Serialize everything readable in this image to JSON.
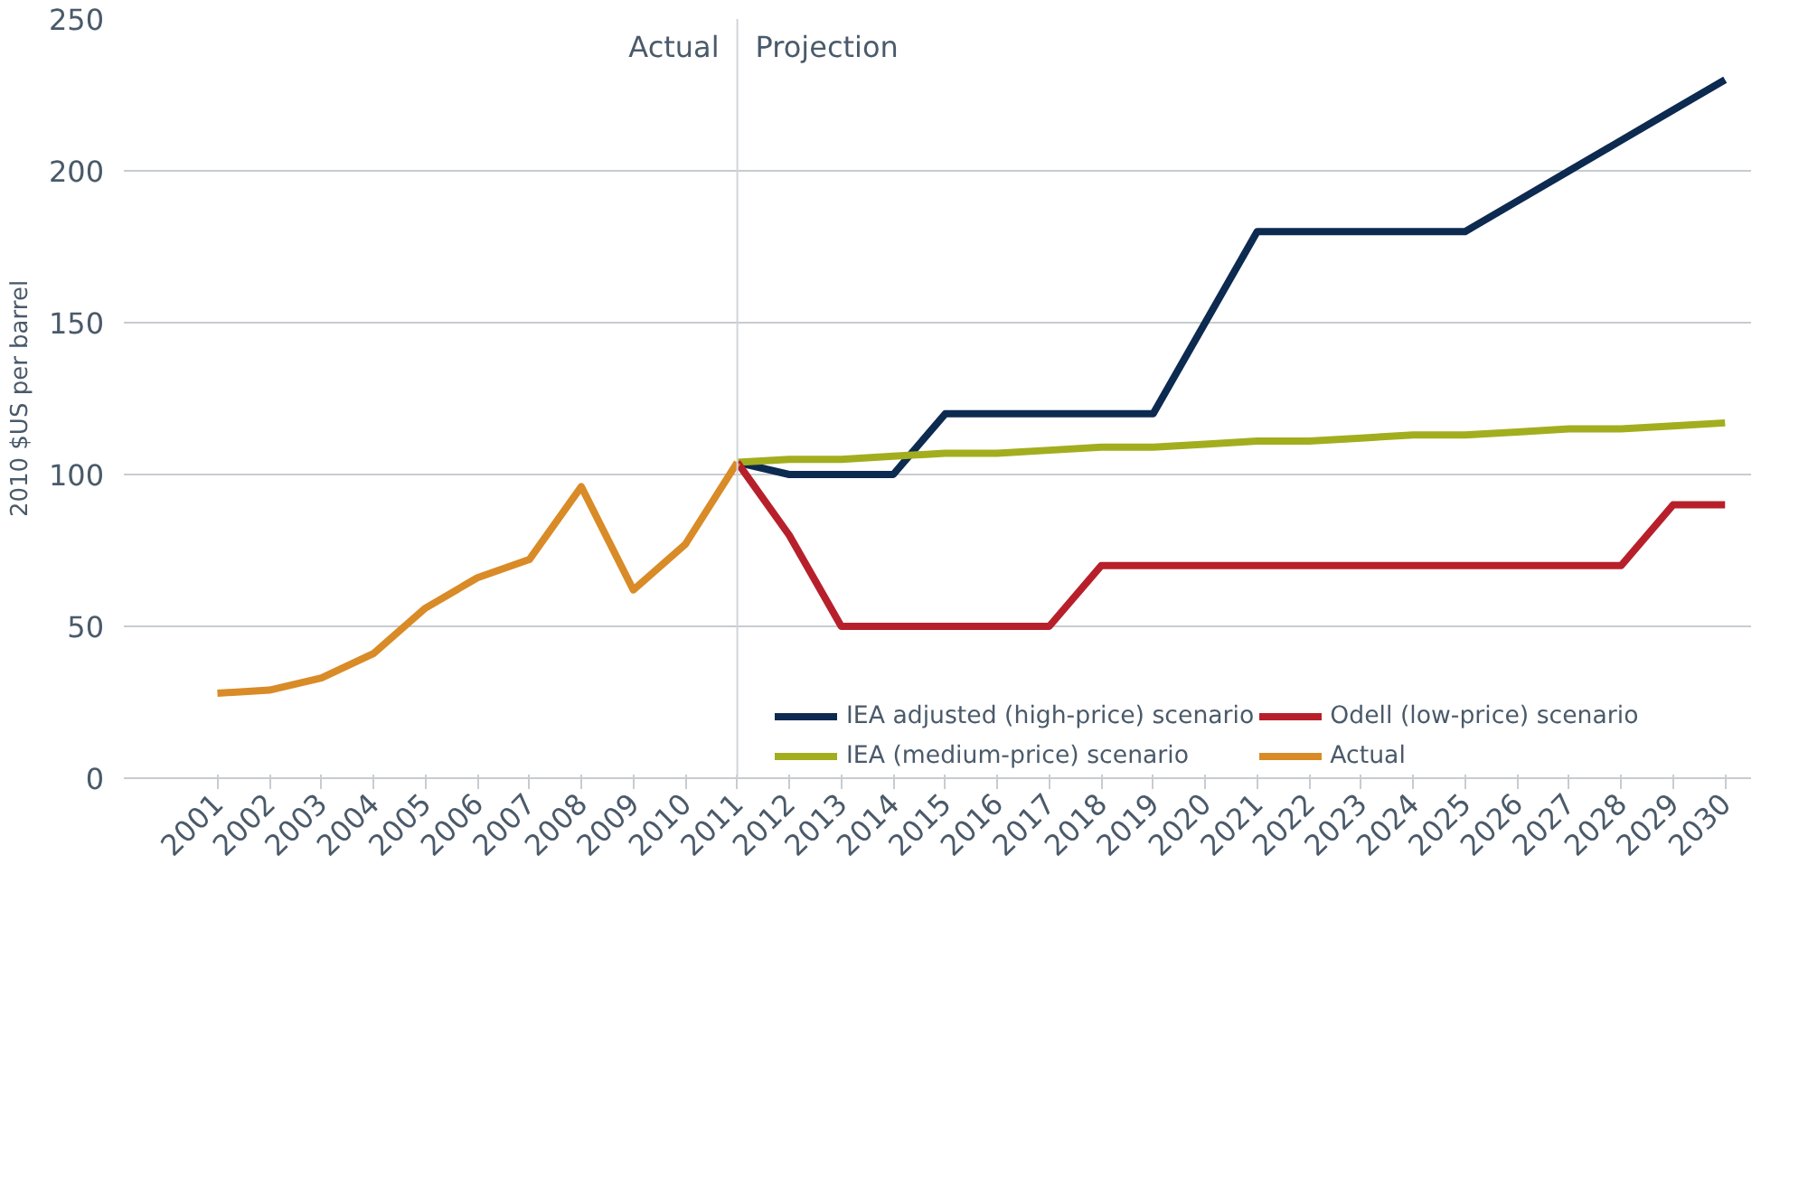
{
  "chart_data": {
    "type": "line",
    "ylabel": "2010 $US per barrel",
    "xlim": [
      1999.2,
      2030.5
    ],
    "xticks": [
      2001,
      2002,
      2003,
      2004,
      2005,
      2006,
      2007,
      2008,
      2009,
      2010,
      2011,
      2012,
      2013,
      2014,
      2015,
      2016,
      2017,
      2018,
      2019,
      2020,
      2021,
      2022,
      2023,
      2024,
      2025,
      2026,
      2027,
      2028,
      2029,
      2030
    ],
    "ylim": [
      0,
      250
    ],
    "yticks": [
      0,
      50,
      100,
      150,
      200,
      250
    ],
    "grid": "y",
    "legend": "bottom",
    "marker": "none",
    "line_style": "solid",
    "ref_lines": [
      {
        "axis": "x",
        "value": 2011,
        "color": "#d0d4d8"
      }
    ],
    "annotations": [
      {
        "text": "Actual",
        "x": 2011,
        "y": 235
      },
      {
        "text": "Projection",
        "x": 2011,
        "y": 235
      }
    ],
    "series": [
      {
        "name": "IEA adjusted (high-price) scenario",
        "color": "#0d2a50",
        "x": [
          2011,
          2012,
          2013,
          2014,
          2015,
          2016,
          2017,
          2018,
          2019,
          2020,
          2021,
          2022,
          2023,
          2024,
          2025,
          2026,
          2027,
          2028,
          2029,
          2030
        ],
        "values": [
          104,
          100,
          100,
          100,
          120,
          120,
          120,
          120,
          120,
          150,
          180,
          180,
          180,
          180,
          180,
          190,
          200,
          210,
          220,
          230
        ]
      },
      {
        "name": "IEA (medium-price) scenario",
        "color": "#a2ae1e",
        "x": [
          2011,
          2012,
          2013,
          2014,
          2015,
          2016,
          2017,
          2018,
          2019,
          2020,
          2021,
          2022,
          2023,
          2024,
          2025,
          2026,
          2027,
          2028,
          2029,
          2030
        ],
        "values": [
          104,
          105,
          105,
          106,
          107,
          107,
          108,
          109,
          109,
          110,
          111,
          111,
          112,
          113,
          113,
          114,
          115,
          115,
          116,
          117
        ]
      },
      {
        "name": "Odell (low-price) scenario",
        "color": "#b7202b",
        "x": [
          2011,
          2012,
          2013,
          2014,
          2015,
          2016,
          2017,
          2018,
          2019,
          2020,
          2021,
          2022,
          2023,
          2024,
          2025,
          2026,
          2027,
          2028,
          2029,
          2030
        ],
        "values": [
          104,
          80,
          50,
          50,
          50,
          50,
          50,
          70,
          70,
          70,
          70,
          70,
          70,
          70,
          70,
          70,
          70,
          70,
          90,
          90
        ]
      },
      {
        "name": "Actual",
        "color": "#d98b27",
        "x": [
          2001,
          2002,
          2003,
          2004,
          2005,
          2006,
          2007,
          2008,
          2009,
          2010,
          2011
        ],
        "values": [
          28,
          29,
          33,
          41,
          56,
          66,
          72,
          96,
          62,
          77,
          104
        ]
      }
    ]
  }
}
